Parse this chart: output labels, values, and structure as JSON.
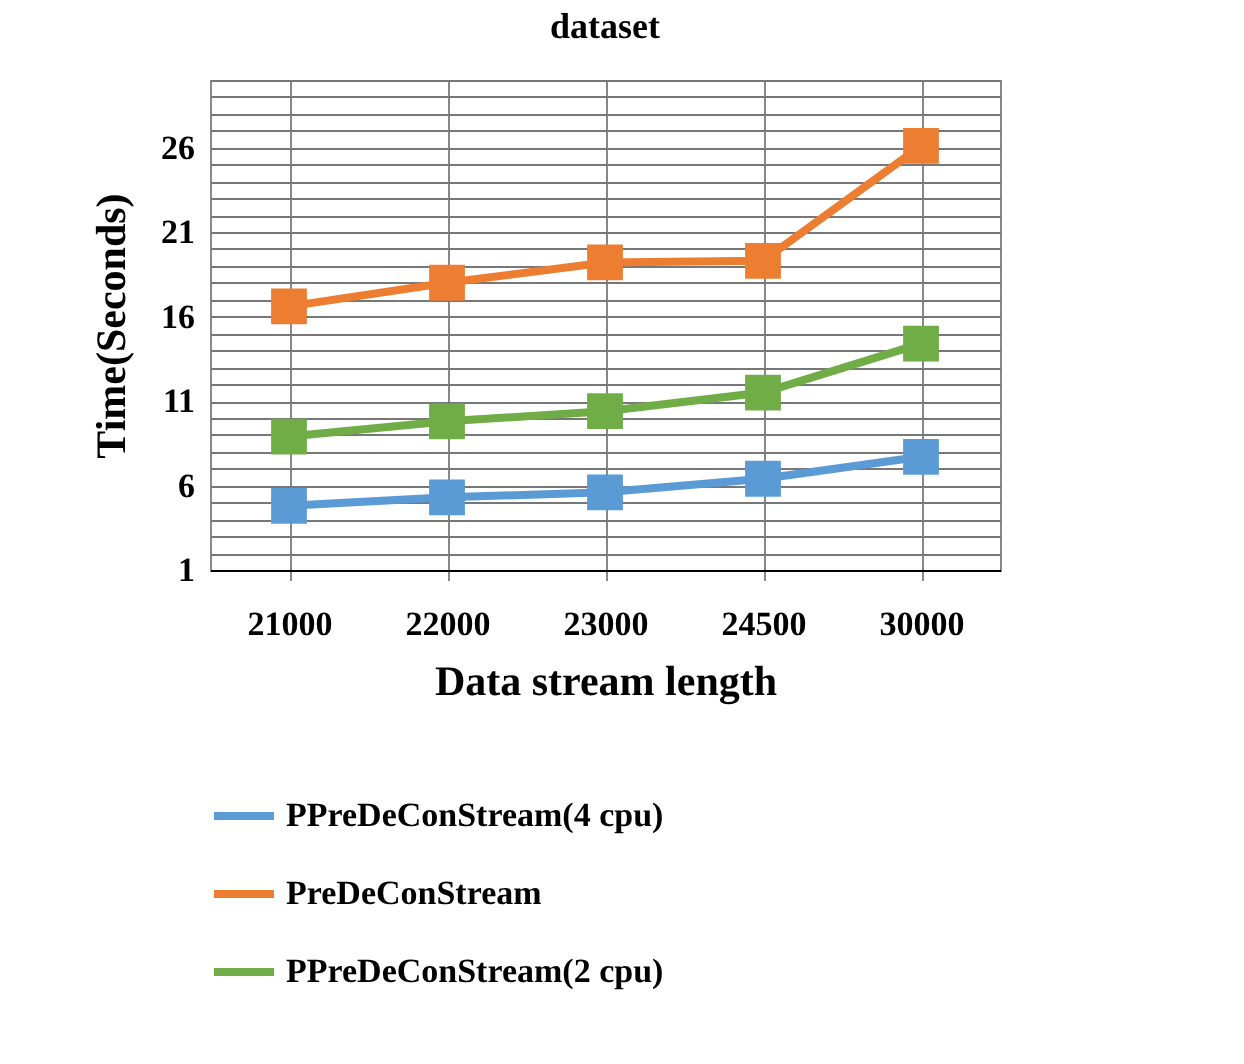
{
  "chart_data": {
    "type": "line",
    "title": "dataset",
    "xlabel": "Data stream length",
    "ylabel": "Time(Seconds)",
    "categories": [
      "21000",
      "22000",
      "23000",
      "24500",
      "30000"
    ],
    "series": [
      {
        "name": "PPreDeConStream(4 cpu)",
        "color": "#5b9bd5",
        "values": [
          4.8,
          5.3,
          5.6,
          6.4,
          7.7
        ]
      },
      {
        "name": "PreDeConStream",
        "color": "#ed7d31",
        "values": [
          16.6,
          18.0,
          19.2,
          19.3,
          26.1
        ]
      },
      {
        "name": "PPreDeConStream(2 cpu)",
        "color": "#70ad47",
        "values": [
          8.9,
          9.8,
          10.4,
          11.5,
          14.4
        ]
      }
    ],
    "ylim": [
      1,
      30
    ],
    "yticks": [
      1,
      {
        "value": 2,
        "label": null
      },
      {
        "value": 3,
        "label": null
      },
      {
        "value": 4,
        "label": null
      },
      {
        "value": 5,
        "label": null
      },
      6,
      {
        "value": 7,
        "label": null
      },
      {
        "value": 8,
        "label": null
      },
      {
        "value": 9,
        "label": null
      },
      {
        "value": 10,
        "label": null
      },
      11,
      {
        "value": 12,
        "label": null
      },
      {
        "value": 13,
        "label": null
      },
      {
        "value": 14,
        "label": null
      },
      {
        "value": 15,
        "label": null
      },
      16,
      {
        "value": 17,
        "label": null
      },
      {
        "value": 18,
        "label": null
      },
      {
        "value": 19,
        "label": null
      },
      {
        "value": 20,
        "label": null
      },
      21,
      {
        "value": 22,
        "label": null
      },
      {
        "value": 23,
        "label": null
      },
      {
        "value": 24,
        "label": null
      },
      {
        "value": 25,
        "label": null
      },
      26,
      {
        "value": 27,
        "label": null
      },
      {
        "value": 28,
        "label": null
      },
      {
        "value": 29,
        "label": null
      },
      {
        "value": 30,
        "label": null
      }
    ],
    "grid": true,
    "legend": "bottom",
    "marker": "square",
    "line_style": "solid"
  }
}
